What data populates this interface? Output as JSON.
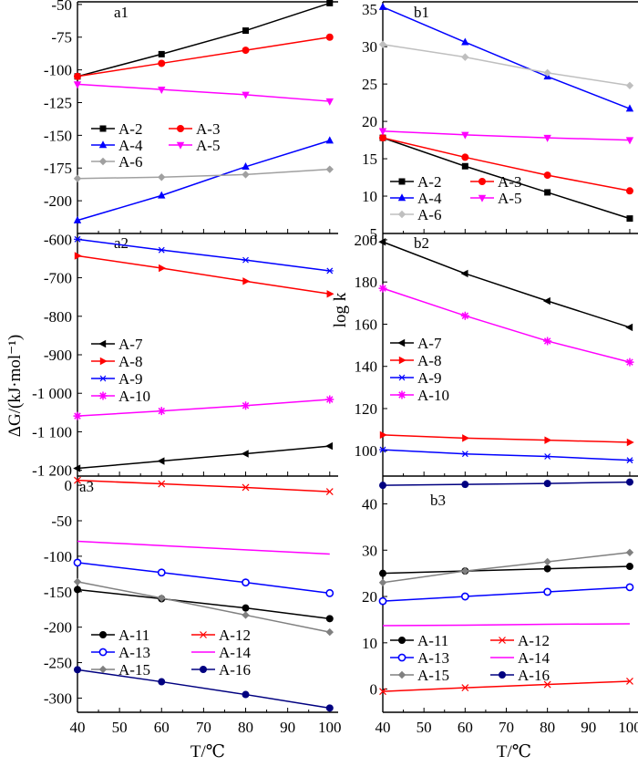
{
  "figure": {
    "y_label_left": "ΔG/(kJ·mol⁻¹)",
    "y_label_right": "log k",
    "x_label": "T/℃"
  },
  "chart_data": [
    {
      "id": "a1",
      "panel_label": "a1",
      "type": "line",
      "x": [
        40,
        60,
        80,
        100
      ],
      "xlim": [
        40,
        102
      ],
      "ylim": [
        -225,
        -48
      ],
      "yticks": [
        -50,
        -75,
        -100,
        -125,
        -150,
        -175,
        -200
      ],
      "ytick_labels": [
        "-50",
        "-75",
        "-100",
        "-125",
        "-150",
        "-175",
        "-200"
      ],
      "xticks": [],
      "xtick_labels": [],
      "legend_cols": 2,
      "legend_pos": "middle-left",
      "series": [
        {
          "name": "A-2",
          "color": "#000000",
          "marker": "square",
          "values": [
            -105,
            -88,
            -70,
            -49
          ]
        },
        {
          "name": "A-3",
          "color": "#ff0000",
          "marker": "circle",
          "values": [
            -105,
            -95,
            -85,
            -75
          ]
        },
        {
          "name": "A-4",
          "color": "#0000ff",
          "marker": "triangle-up",
          "values": [
            -215,
            -196,
            -174,
            -154
          ]
        },
        {
          "name": "A-5",
          "color": "#ff00ff",
          "marker": "triangle-down",
          "values": [
            -111,
            -115,
            -119,
            -124
          ]
        },
        {
          "name": "A-6",
          "color": "#a0a0a0",
          "marker": "diamond",
          "values": [
            -183,
            -182,
            -180,
            -176
          ]
        }
      ]
    },
    {
      "id": "b1",
      "panel_label": "b1",
      "type": "line",
      "x": [
        40,
        60,
        80,
        100
      ],
      "xlim": [
        40,
        102
      ],
      "ylim": [
        5,
        36
      ],
      "yticks": [
        5,
        10,
        15,
        20,
        25,
        30,
        35
      ],
      "ytick_labels": [
        "5",
        "10",
        "15",
        "20",
        "25",
        "30",
        "35"
      ],
      "xticks": [],
      "xtick_labels": [],
      "legend_cols": 2,
      "legend_pos": "bottom-left",
      "series": [
        {
          "name": "A-2",
          "color": "#000000",
          "marker": "square",
          "values": [
            17.8,
            14.0,
            10.5,
            7.0
          ]
        },
        {
          "name": "A-3",
          "color": "#ff0000",
          "marker": "circle",
          "values": [
            17.8,
            15.2,
            12.8,
            10.7
          ]
        },
        {
          "name": "A-4",
          "color": "#0000ff",
          "marker": "triangle-up",
          "values": [
            35.3,
            30.6,
            26.0,
            21.7
          ]
        },
        {
          "name": "A-5",
          "color": "#ff00ff",
          "marker": "triangle-down",
          "values": [
            18.7,
            18.2,
            17.8,
            17.5
          ]
        },
        {
          "name": "A-6",
          "color": "#bfbfbf",
          "marker": "diamond",
          "values": [
            30.3,
            28.6,
            26.5,
            24.8
          ]
        }
      ]
    },
    {
      "id": "a2",
      "panel_label": "a2",
      "type": "line",
      "x": [
        40,
        60,
        80,
        100
      ],
      "xlim": [
        40,
        102
      ],
      "ylim": [
        -1215,
        -585
      ],
      "yticks": [
        -600,
        -700,
        -800,
        -900,
        -1000,
        -1100,
        -1200
      ],
      "ytick_labels": [
        "-600",
        "-700",
        "-800",
        "-900",
        "-1 000",
        "-1 100",
        "-1 200"
      ],
      "xticks": [],
      "xtick_labels": [],
      "legend_cols": 1,
      "legend_pos": "middle-left",
      "series": [
        {
          "name": "A-7",
          "color": "#000000",
          "marker": "triangle-left",
          "values": [
            -1195,
            -1176,
            -1157,
            -1137
          ]
        },
        {
          "name": "A-8",
          "color": "#ff0000",
          "marker": "triangle-right",
          "values": [
            -643,
            -675,
            -709,
            -742
          ]
        },
        {
          "name": "A-9",
          "color": "#0000ff",
          "marker": "asterisk",
          "values": [
            -600,
            -628,
            -654,
            -682
          ]
        },
        {
          "name": "A-10",
          "color": "#ff00ff",
          "marker": "star",
          "values": [
            -1059,
            -1046,
            -1032,
            -1016
          ]
        }
      ]
    },
    {
      "id": "b2",
      "panel_label": "b2",
      "type": "line",
      "x": [
        40,
        60,
        80,
        100
      ],
      "xlim": [
        40,
        102
      ],
      "ylim": [
        88,
        203
      ],
      "yticks": [
        100,
        120,
        140,
        160,
        180,
        200
      ],
      "ytick_labels": [
        "100",
        "120",
        "140",
        "160",
        "180",
        "200"
      ],
      "xticks": [],
      "xtick_labels": [],
      "legend_cols": 1,
      "legend_pos": "middle-left",
      "series": [
        {
          "name": "A-7",
          "color": "#000000",
          "marker": "triangle-left",
          "values": [
            199,
            184,
            171,
            158.5
          ]
        },
        {
          "name": "A-8",
          "color": "#ff0000",
          "marker": "triangle-right",
          "values": [
            107.5,
            106,
            105,
            104
          ]
        },
        {
          "name": "A-9",
          "color": "#0000ff",
          "marker": "asterisk",
          "values": [
            100.5,
            98.5,
            97.3,
            95.5
          ]
        },
        {
          "name": "A-10",
          "color": "#ff00ff",
          "marker": "star",
          "values": [
            177,
            164,
            152,
            142
          ]
        }
      ]
    },
    {
      "id": "a3",
      "panel_label": "a3",
      "type": "line",
      "x": [
        40,
        60,
        80,
        100
      ],
      "xlim": [
        40,
        102
      ],
      "ylim": [
        -320,
        13
      ],
      "yticks": [
        0,
        -50,
        -100,
        -150,
        -200,
        -250,
        -300
      ],
      "ytick_labels": [
        "0",
        "-50",
        "-100",
        "-150",
        "-200",
        "-250",
        "-300"
      ],
      "xticks": [
        40,
        50,
        60,
        70,
        80,
        90,
        100
      ],
      "xtick_labels": [
        "40",
        "50",
        "60",
        "70",
        "80",
        "90",
        "100"
      ],
      "legend_cols": 2,
      "legend_pos": "bottom-right",
      "series": [
        {
          "name": "A-11",
          "color": "#000000",
          "marker": "circle",
          "values": [
            -147,
            -160,
            -173,
            -188
          ]
        },
        {
          "name": "A-12",
          "color": "#ff0000",
          "marker": "x",
          "values": [
            7,
            2,
            -3,
            -9
          ]
        },
        {
          "name": "A-13",
          "color": "#0000ff",
          "marker": "circle-open",
          "values": [
            -109,
            -123,
            -137,
            -152
          ]
        },
        {
          "name": "A-14",
          "color": "#ff00ff",
          "marker": "none",
          "values": [
            -79,
            -85,
            -91,
            -97
          ]
        },
        {
          "name": "A-15",
          "color": "#808080",
          "marker": "diamond",
          "values": [
            -136,
            -159,
            -183,
            -207
          ]
        },
        {
          "name": "A-16",
          "color": "#000080",
          "marker": "circle",
          "values": [
            -260,
            -277,
            -295,
            -314
          ]
        }
      ]
    },
    {
      "id": "b3",
      "panel_label": "b3",
      "type": "line",
      "x": [
        40,
        60,
        80,
        100
      ],
      "xlim": [
        40,
        102
      ],
      "ylim": [
        -5,
        46
      ],
      "yticks": [
        0,
        10,
        20,
        30,
        40
      ],
      "ytick_labels": [
        "0",
        "10",
        "20",
        "30",
        "40"
      ],
      "xticks": [
        40,
        50,
        60,
        70,
        80,
        90,
        100
      ],
      "xtick_labels": [
        "40",
        "50",
        "60",
        "70",
        "80",
        "90",
        "100"
      ],
      "legend_cols": 2,
      "legend_pos": "bottom-left",
      "series": [
        {
          "name": "A-11",
          "color": "#000000",
          "marker": "circle",
          "values": [
            25,
            25.5,
            26,
            26.5
          ]
        },
        {
          "name": "A-12",
          "color": "#ff0000",
          "marker": "x",
          "values": [
            -0.5,
            0.3,
            1.0,
            1.7
          ]
        },
        {
          "name": "A-13",
          "color": "#0000ff",
          "marker": "circle-open",
          "values": [
            19,
            20,
            21,
            22
          ]
        },
        {
          "name": "A-14",
          "color": "#ff00ff",
          "marker": "none",
          "values": [
            13.7,
            13.8,
            14.0,
            14.1
          ]
        },
        {
          "name": "A-15",
          "color": "#808080",
          "marker": "diamond",
          "values": [
            23,
            25.5,
            27.5,
            29.5
          ]
        },
        {
          "name": "A-16",
          "color": "#000080",
          "marker": "circle",
          "values": [
            44,
            44.2,
            44.4,
            44.7
          ]
        }
      ]
    }
  ]
}
